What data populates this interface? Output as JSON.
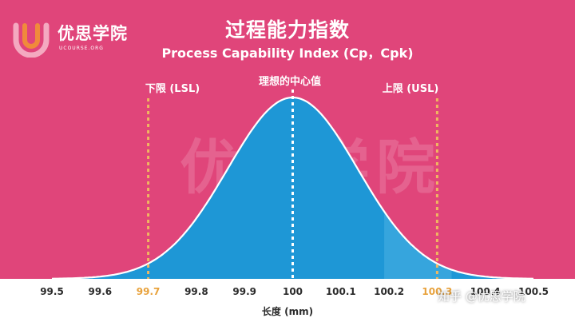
{
  "title_zh": "过程能力指数",
  "title_en": "Process Capability Index (Cp，Cpk)",
  "logo": {
    "name": "优思学院",
    "sub": "UCOURSE.ORG"
  },
  "watermark": "优思学院",
  "credit": "知乎 @优思学院",
  "labels": {
    "lsl": "下限 (LSL)",
    "center": "理想的中心值",
    "usl": "上限 (USL)"
  },
  "axis": {
    "label": "长度 (mm)",
    "ticks": [
      "99.5",
      "99.6",
      "99.7",
      "99.8",
      "99.9",
      "100",
      "100.1",
      "100.2",
      "100.3",
      "100.4",
      "100.5"
    ],
    "limit_ticks": [
      "99.7",
      "100.3"
    ]
  },
  "chart_data": {
    "type": "area",
    "curve": "normal",
    "mean": 100.0,
    "xlim": [
      99.5,
      100.5
    ],
    "lsl": 99.7,
    "usl": 100.3,
    "target": 100.0,
    "xlabel": "长度 (mm)"
  },
  "colors": {
    "background": "#e0457a",
    "curve_fill": "#1e97d6",
    "curve_fill_light": "#4bb0e3",
    "curve_stroke": "#ffffff",
    "limit_line": "#f0b760",
    "center_line": "#ffffff",
    "axis_text": "#2b2b2b"
  }
}
